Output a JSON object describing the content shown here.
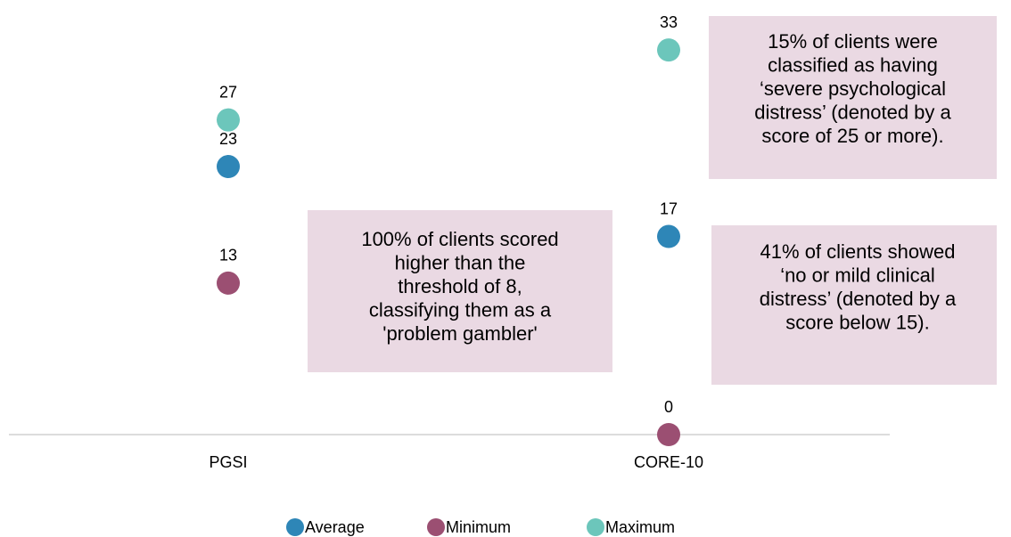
{
  "chart_data": {
    "type": "dot",
    "categories": [
      "PGSI",
      "CORE-10"
    ],
    "series": [
      {
        "name": "Average",
        "color": "#2e86b7",
        "values": [
          23,
          17
        ]
      },
      {
        "name": "Minimum",
        "color": "#9b4f72",
        "values": [
          13,
          0
        ]
      },
      {
        "name": "Maximum",
        "color": "#6cc6bb",
        "values": [
          27,
          33
        ]
      }
    ],
    "ylim": [
      0,
      35
    ],
    "legend": "bottom",
    "annotations": [
      {
        "lines": [
          "100% of clients scored",
          "higher than the",
          "threshold of 8,",
          "classifying them as a",
          "'problem gambler'"
        ]
      },
      {
        "lines": [
          "15% of clients were",
          "classified as having",
          "‘severe psychological",
          "distress’ (denoted by a",
          "score of 25 or more)."
        ]
      },
      {
        "lines": [
          "41% of clients showed",
          "‘no or mild clinical",
          "distress’ (denoted by a",
          "score below 15)."
        ]
      }
    ]
  }
}
